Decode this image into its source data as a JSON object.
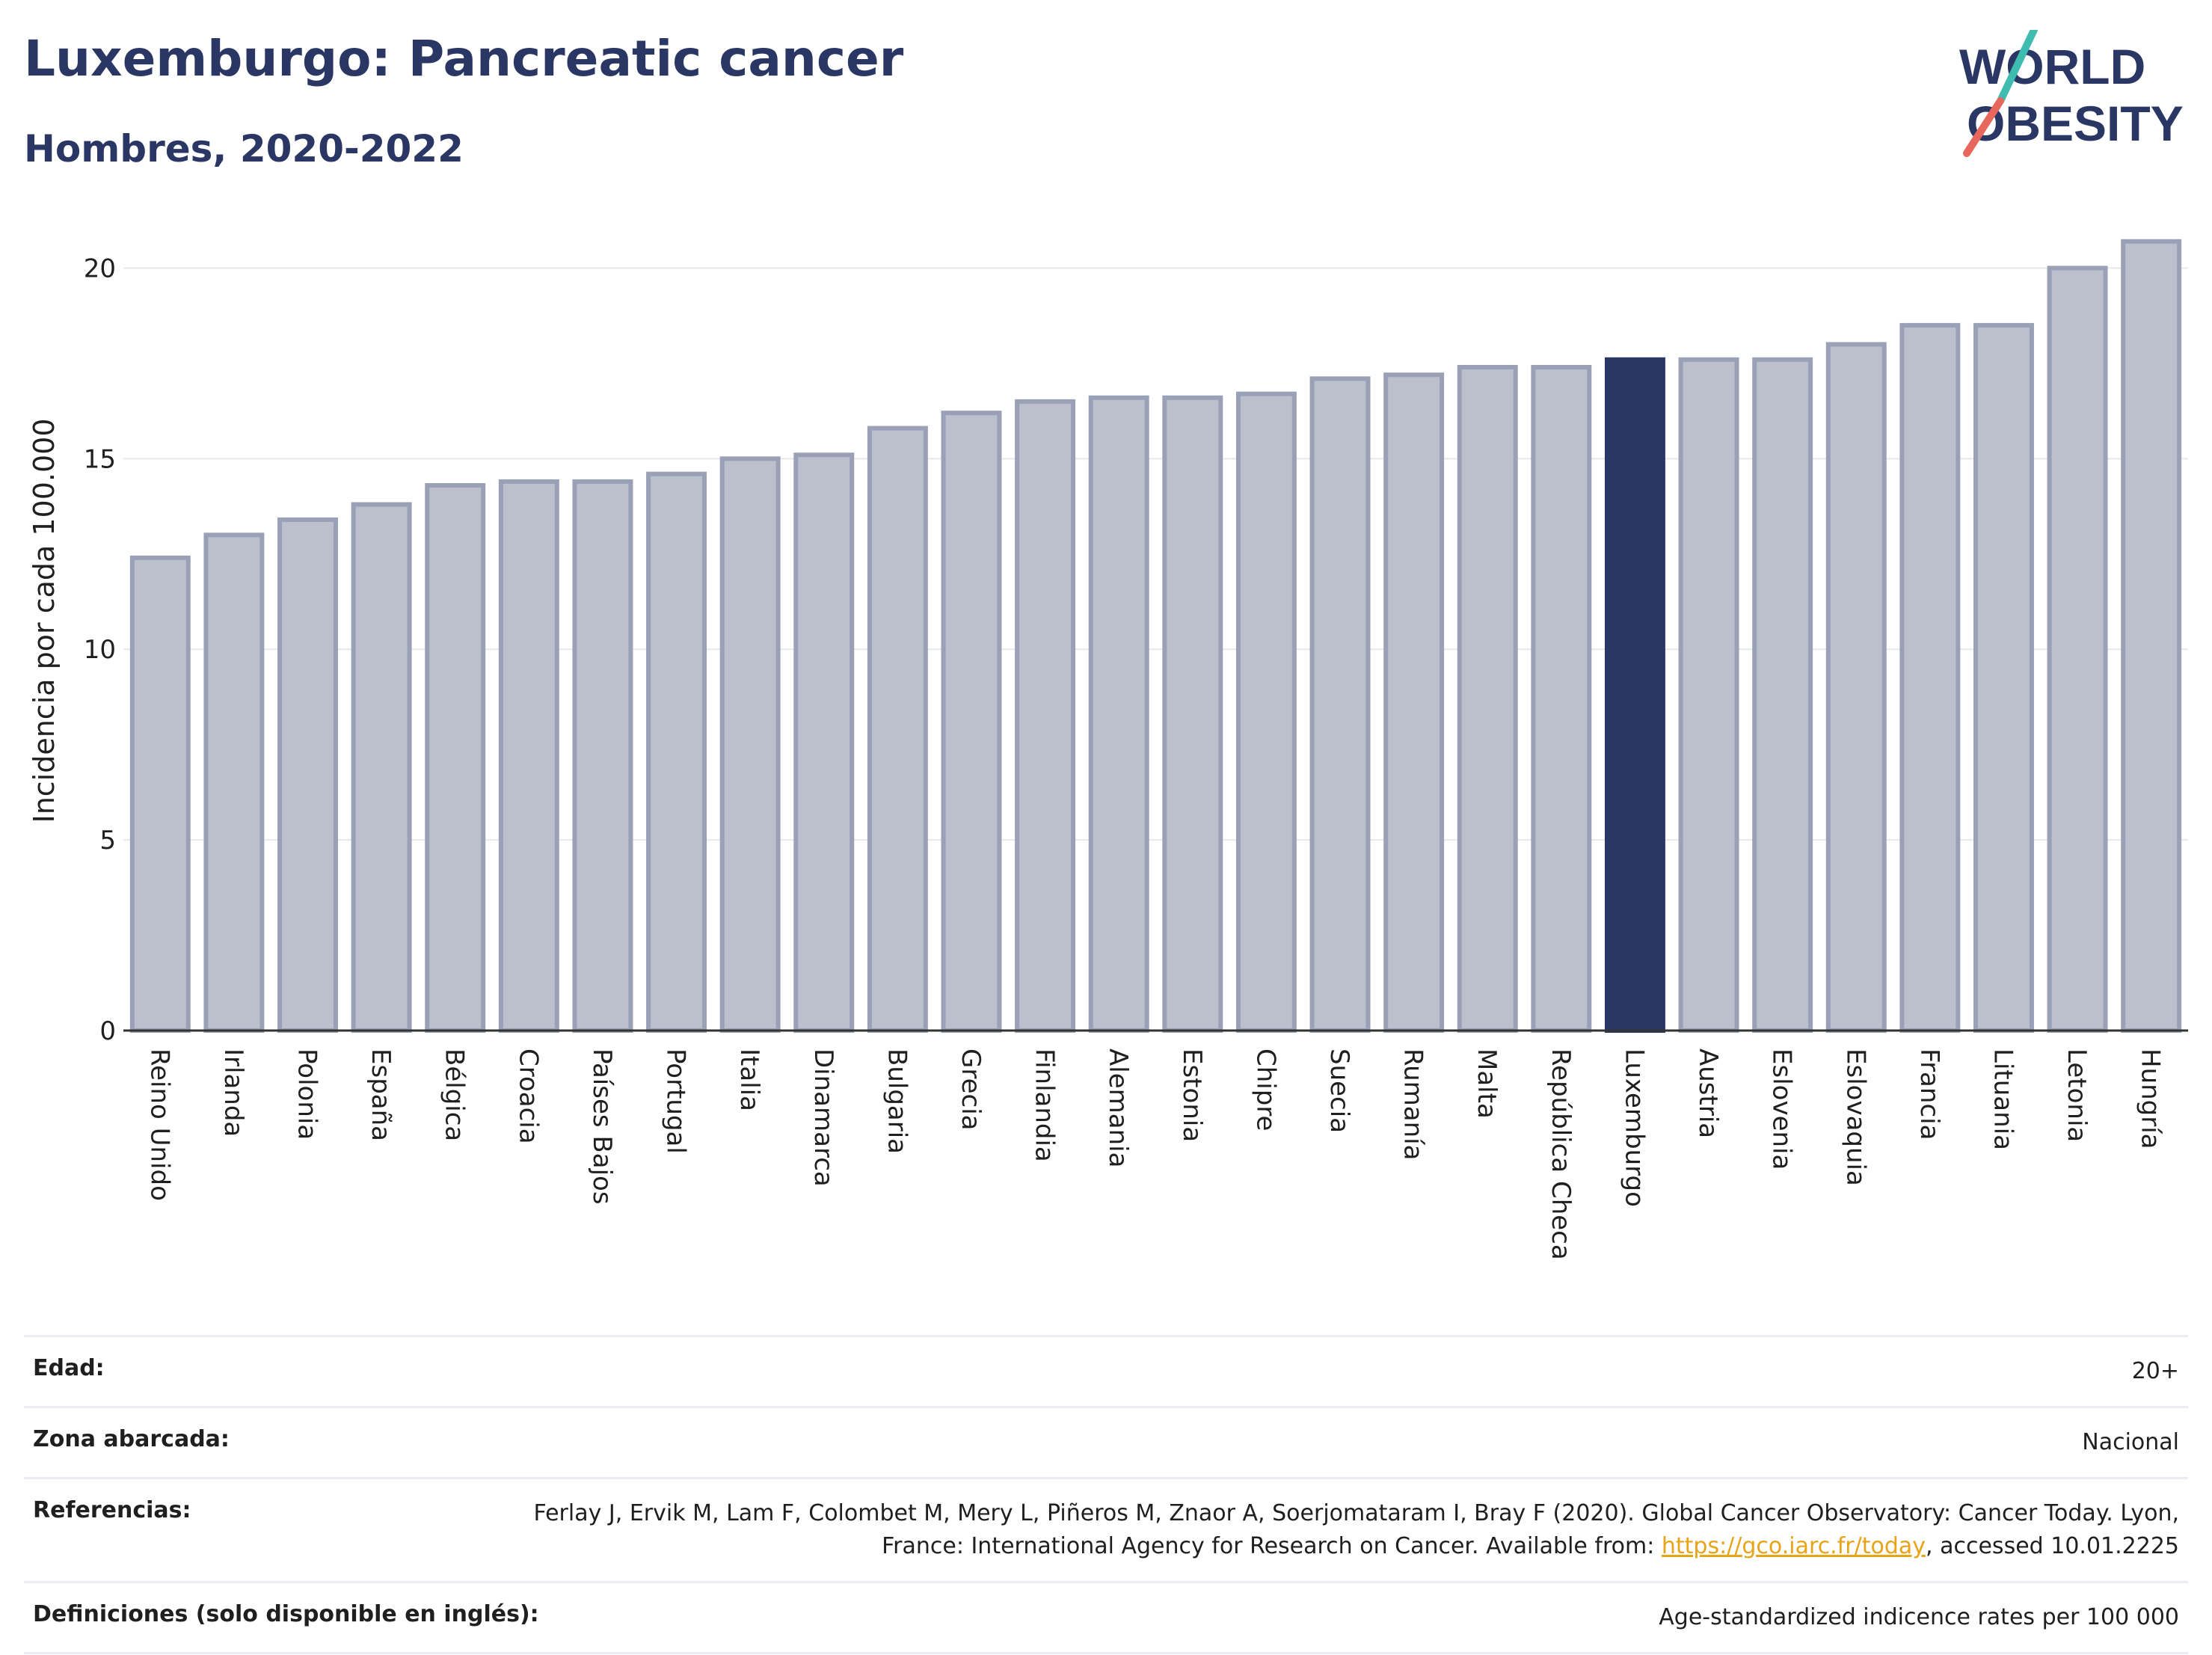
{
  "title": "Luxemburgo: Pancreatic cancer",
  "subtitle": "Hombres, 2020-2022",
  "logo": {
    "line1": "WORLD",
    "line2": "OBESITY"
  },
  "colors": {
    "highlight": "#2a3764",
    "bar": "#bcc0cd",
    "bar_border": "#9aa0b6",
    "title": "#2a3764"
  },
  "chart_data": {
    "type": "bar",
    "categories": [
      "Reino Unido",
      "Irlanda",
      "Polonia",
      "España",
      "Bélgica",
      "Croacia",
      "Países Bajos",
      "Portugal",
      "Italia",
      "Dinamarca",
      "Bulgaria",
      "Grecia",
      "Finlandia",
      "Alemania",
      "Estonia",
      "Chipre",
      "Suecia",
      "Rumanía",
      "Malta",
      "República Checa",
      "Luxemburgo",
      "Austria",
      "Eslovenia",
      "Eslovaquia",
      "Francia",
      "Lituania",
      "Letonia",
      "Hungría"
    ],
    "values": [
      12.4,
      13.0,
      13.4,
      13.8,
      14.3,
      14.4,
      14.4,
      14.6,
      15.0,
      15.1,
      15.8,
      16.2,
      16.5,
      16.6,
      16.6,
      16.7,
      17.1,
      17.2,
      17.4,
      17.4,
      17.6,
      17.6,
      17.6,
      18.0,
      18.5,
      18.5,
      20.0,
      20.7
    ],
    "highlight": "Luxemburgo",
    "ylabel": "Incidencia por cada 100.000",
    "xlabel": "",
    "ylim": [
      0,
      21.5
    ],
    "yticks": [
      0,
      5,
      10,
      15,
      20
    ],
    "grid": true
  },
  "info": {
    "edad_label": "Edad:",
    "edad_value": "20+",
    "zona_label": "Zona abarcada:",
    "zona_value": "Nacional",
    "ref_label": "Referencias:",
    "ref_text_1": "Ferlay J, Ervik M, Lam F, Colombet M, Mery L, Piñeros M, Znaor A, Soerjomataram I, Bray F (2020). Global Cancer Observatory: Cancer Today. Lyon, France: International Agency for Research on Cancer. Available from: ",
    "ref_link": "https://gco.iarc.fr/today",
    "ref_text_2": ", accessed 10.01.2225",
    "def_label": "Definiciones (solo disponible en inglés):",
    "def_value": "Age-standardized indicence rates per 100 000"
  }
}
